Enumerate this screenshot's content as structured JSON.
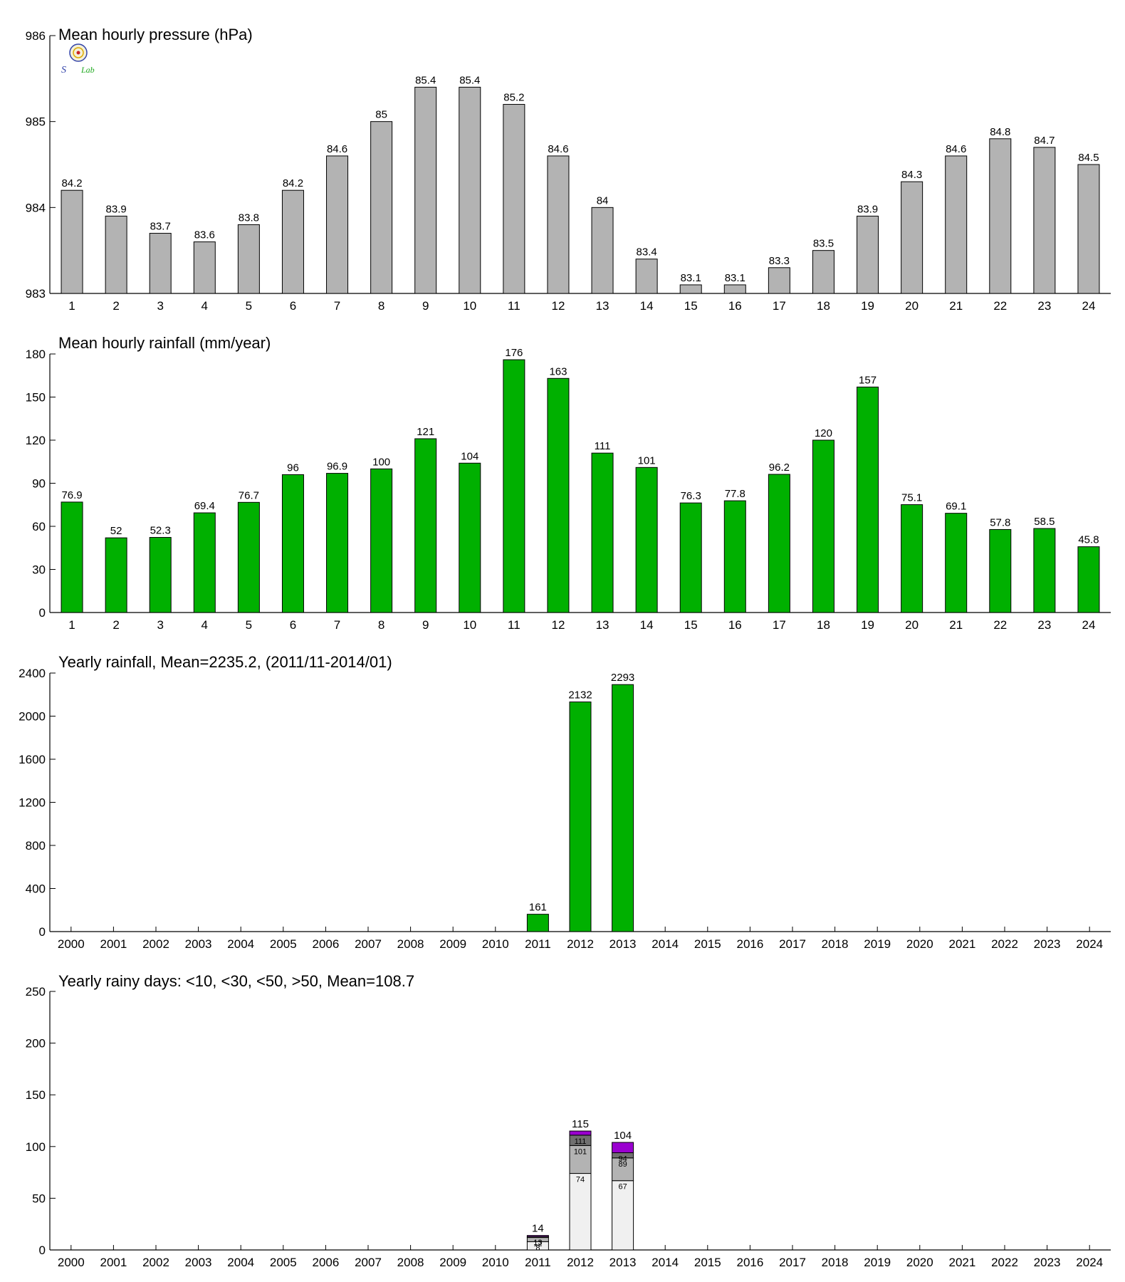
{
  "logo": {
    "text": "S Lab",
    "colors": [
      "#3344aa",
      "#cc2222",
      "#22aa22",
      "#ddaa00"
    ]
  },
  "colors": {
    "pressure_bar": "#b3b3b3",
    "rain_bar": "#00b000",
    "days_lt10": "#f0f0f0",
    "days_lt30": "#b3b3b3",
    "days_lt50": "#707070",
    "days_gt50": "#9a00d0",
    "axis": "#000000"
  },
  "chart_data": [
    {
      "type": "bar",
      "title": "Mean hourly pressure (hPa)",
      "categories": [
        "1",
        "2",
        "3",
        "4",
        "5",
        "6",
        "7",
        "8",
        "9",
        "10",
        "11",
        "12",
        "13",
        "14",
        "15",
        "16",
        "17",
        "18",
        "19",
        "20",
        "21",
        "22",
        "23",
        "24"
      ],
      "values": [
        984.2,
        983.9,
        983.7,
        983.6,
        983.8,
        984.2,
        984.6,
        985,
        985.4,
        985.4,
        985.2,
        984.6,
        984,
        983.4,
        983.1,
        983.1,
        983.3,
        983.5,
        983.9,
        984.3,
        984.6,
        984.8,
        984.7,
        984.5
      ],
      "data_labels": [
        "84.2",
        "83.9",
        "83.7",
        "83.6",
        "83.8",
        "84.2",
        "84.6",
        "85",
        "85.4",
        "85.4",
        "85.2",
        "84.6",
        "84",
        "83.4",
        "83.1",
        "83.1",
        "83.3",
        "83.5",
        "83.9",
        "84.3",
        "84.6",
        "84.8",
        "84.7",
        "84.5"
      ],
      "ylim": [
        983,
        986
      ],
      "yticks": [
        983,
        984,
        985,
        986
      ],
      "color": "#b3b3b3"
    },
    {
      "type": "bar",
      "title": "Mean hourly rainfall (mm/year)",
      "categories": [
        "1",
        "2",
        "3",
        "4",
        "5",
        "6",
        "7",
        "8",
        "9",
        "10",
        "11",
        "12",
        "13",
        "14",
        "15",
        "16",
        "17",
        "18",
        "19",
        "20",
        "21",
        "22",
        "23",
        "24"
      ],
      "values": [
        76.9,
        52,
        52.3,
        69.4,
        76.7,
        96,
        96.9,
        100,
        121,
        104,
        176,
        163,
        111,
        101,
        76.3,
        77.8,
        96.2,
        120,
        157,
        75.1,
        69.1,
        57.8,
        58.5,
        45.8
      ],
      "data_labels": [
        "76.9",
        "52",
        "52.3",
        "69.4",
        "76.7",
        "96",
        "96.9",
        "100",
        "121",
        "104",
        "176",
        "163",
        "111",
        "101",
        "76.3",
        "77.8",
        "96.2",
        "120",
        "157",
        "75.1",
        "69.1",
        "57.8",
        "58.5",
        "45.8"
      ],
      "ylim": [
        0,
        180
      ],
      "yticks": [
        0,
        30,
        60,
        90,
        120,
        150,
        180
      ],
      "color": "#00b000"
    },
    {
      "type": "bar",
      "title": "Yearly rainfall, Mean=2235.2, (2011/11-2014/01)",
      "categories": [
        "2000",
        "2001",
        "2002",
        "2003",
        "2004",
        "2005",
        "2006",
        "2007",
        "2008",
        "2009",
        "2010",
        "2011",
        "2012",
        "2013",
        "2014",
        "2015",
        "2016",
        "2017",
        "2018",
        "2019",
        "2020",
        "2021",
        "2022",
        "2023",
        "2024"
      ],
      "values": [
        null,
        null,
        null,
        null,
        null,
        null,
        null,
        null,
        null,
        null,
        null,
        161,
        2132,
        2293,
        null,
        null,
        null,
        null,
        null,
        null,
        null,
        null,
        null,
        null,
        null
      ],
      "data_labels": [
        "",
        "",
        "",
        "",
        "",
        "",
        "",
        "",
        "",
        "",
        "",
        "161",
        "2132",
        "2293",
        "",
        "",
        "",
        "",
        "",
        "",
        "",
        "",
        "",
        "",
        ""
      ],
      "ylim": [
        0,
        2400
      ],
      "yticks": [
        0,
        400,
        800,
        1200,
        1600,
        2000,
        2400
      ],
      "color": "#00b000"
    },
    {
      "type": "bar",
      "stacked": true,
      "title": "Yearly rainy days: <10, <30, <50, >50, Mean=108.7",
      "categories": [
        "2000",
        "2001",
        "2002",
        "2003",
        "2004",
        "2005",
        "2006",
        "2007",
        "2008",
        "2009",
        "2010",
        "2011",
        "2012",
        "2013",
        "2014",
        "2015",
        "2016",
        "2017",
        "2018",
        "2019",
        "2020",
        "2021",
        "2022",
        "2023",
        "2024"
      ],
      "totals": [
        null,
        null,
        null,
        null,
        null,
        null,
        null,
        null,
        null,
        null,
        null,
        14,
        115,
        104,
        null,
        null,
        null,
        null,
        null,
        null,
        null,
        null,
        null,
        null,
        null
      ],
      "total_labels": [
        "",
        "",
        "",
        "",
        "",
        "",
        "",
        "",
        "",
        "",
        "",
        "14",
        "115",
        "104",
        "",
        "",
        "",
        "",
        "",
        "",
        "",
        "",
        "",
        "",
        ""
      ],
      "cumulative": {
        "lt10": [
          null,
          null,
          null,
          null,
          null,
          null,
          null,
          null,
          null,
          null,
          null,
          8,
          74,
          67,
          null,
          null,
          null,
          null,
          null,
          null,
          null,
          null,
          null,
          null,
          null
        ],
        "lt30": [
          null,
          null,
          null,
          null,
          null,
          null,
          null,
          null,
          null,
          null,
          null,
          12,
          101,
          89,
          null,
          null,
          null,
          null,
          null,
          null,
          null,
          null,
          null,
          null,
          null
        ],
        "lt50": [
          null,
          null,
          null,
          null,
          null,
          null,
          null,
          null,
          null,
          null,
          null,
          13,
          111,
          94,
          null,
          null,
          null,
          null,
          null,
          null,
          null,
          null,
          null,
          null,
          null
        ]
      },
      "cumulative_labels": {
        "lt10": [
          "",
          "",
          "",
          "",
          "",
          "",
          "",
          "",
          "",
          "",
          "",
          "8",
          "74",
          "67",
          "",
          "",
          "",
          "",
          "",
          "",
          "",
          "",
          "",
          "",
          ""
        ],
        "lt30": [
          "",
          "",
          "",
          "",
          "",
          "",
          "",
          "",
          "",
          "",
          "",
          "12",
          "101",
          "89",
          "",
          "",
          "",
          "",
          "",
          "",
          "",
          "",
          "",
          "",
          ""
        ],
        "lt50": [
          "",
          "",
          "",
          "",
          "",
          "",
          "",
          "",
          "",
          "",
          "",
          "13",
          "111",
          "94",
          "",
          "",
          "",
          "",
          "",
          "",
          "",
          "",
          "",
          "",
          ""
        ]
      },
      "ylim": [
        0,
        250
      ],
      "yticks": [
        0,
        50,
        100,
        150,
        200,
        250
      ],
      "colors": [
        "#f0f0f0",
        "#b3b3b3",
        "#707070",
        "#9a00d0"
      ]
    }
  ]
}
